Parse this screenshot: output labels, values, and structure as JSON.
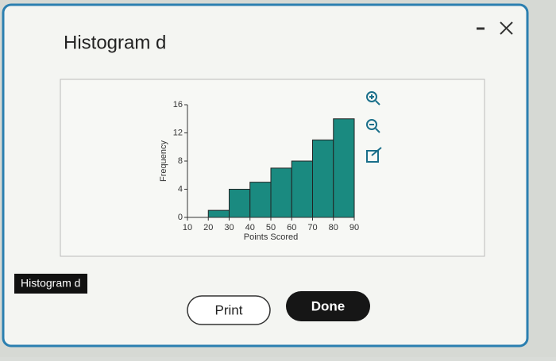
{
  "dialog": {
    "title": "Histogram d",
    "buttons": {
      "print": "Print",
      "done": "Done"
    }
  },
  "background_label": "Histogram d",
  "chart_data": {
    "type": "histogram",
    "x_label": "Points Scored",
    "y_label": "Frequency",
    "bins": [
      20,
      30,
      40,
      50,
      60,
      70,
      80,
      90
    ],
    "values": [
      1,
      4,
      5,
      7,
      8,
      11,
      14
    ],
    "color": "#1a8a80",
    "xlim": [
      10,
      90
    ],
    "ylim": [
      0,
      16
    ],
    "xticks": [
      10,
      20,
      30,
      40,
      50,
      60,
      70,
      80,
      90
    ],
    "yticks": [
      0,
      4,
      8,
      12,
      16
    ]
  }
}
